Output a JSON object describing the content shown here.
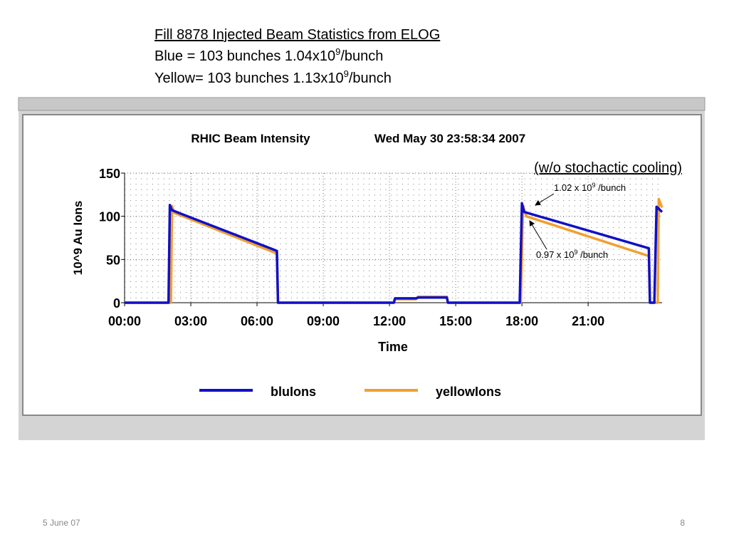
{
  "header": {
    "title": "Fill 8878 Injected Beam Statistics from ELOG",
    "lines": [
      {
        "text": "Blue   = 103 bunches 1.04x10",
        "sup": "9",
        "after": "/bunch"
      },
      {
        "text": "Yellow= 103 bunches 1.13x10",
        "sup": "9",
        "after": "/bunch"
      }
    ]
  },
  "chart_data": {
    "type": "line",
    "title": "RHIC Beam Intensity",
    "subtitle": "Wed May 30 23:58:34 2007",
    "x_label": "Time",
    "y_label": "10^9 Au Ions",
    "xlim": [
      0,
      24.35
    ],
    "ylim": [
      0,
      150
    ],
    "xticks": [
      {
        "value": 0,
        "label": "00:00"
      },
      {
        "value": 3,
        "label": "03:00"
      },
      {
        "value": 6,
        "label": "06:00"
      },
      {
        "value": 9,
        "label": "09:00"
      },
      {
        "value": 12,
        "label": "12:00"
      },
      {
        "value": 15,
        "label": "15:00"
      },
      {
        "value": 18,
        "label": "18:00"
      },
      {
        "value": 21,
        "label": "21:00"
      }
    ],
    "yticks": [
      0,
      50,
      100,
      150
    ],
    "grid": true,
    "series": [
      {
        "name": "bluIons",
        "color": "#1010c8",
        "x": [
          0,
          1.99,
          2.05,
          2.15,
          6.9,
          6.95,
          12.2,
          12.25,
          13.2,
          13.3,
          14.6,
          14.65,
          17.9,
          18.0,
          18.1,
          23.75,
          23.8,
          24.0,
          24.1,
          24.35
        ],
        "values": [
          0,
          0,
          113,
          107,
          60,
          0,
          0,
          5,
          5,
          6,
          6,
          0,
          0,
          115,
          105,
          63,
          0,
          0,
          111,
          105
        ]
      },
      {
        "name": "yellowIons",
        "color": "#f0a030",
        "x": [
          0,
          2.1,
          2.15,
          2.25,
          6.9,
          6.95,
          12.2,
          12.25,
          13.2,
          13.3,
          14.6,
          14.65,
          17.95,
          18.05,
          18.2,
          23.75,
          23.8,
          24.15,
          24.2,
          24.35
        ],
        "values": [
          0,
          0,
          112,
          104,
          57,
          0,
          0,
          4,
          4,
          7,
          7,
          0,
          0,
          112,
          100,
          54,
          0,
          0,
          120,
          110
        ]
      }
    ],
    "annotations": [
      {
        "text": "(w/o stochactic cooling)"
      },
      {
        "text": "1.02 x 10",
        "sup": "9",
        "after": " /bunch"
      },
      {
        "text": "0.97 x 10",
        "sup": "9",
        "after": " /bunch"
      }
    ]
  },
  "footer": {
    "date": "5 June 07",
    "page": "8"
  }
}
